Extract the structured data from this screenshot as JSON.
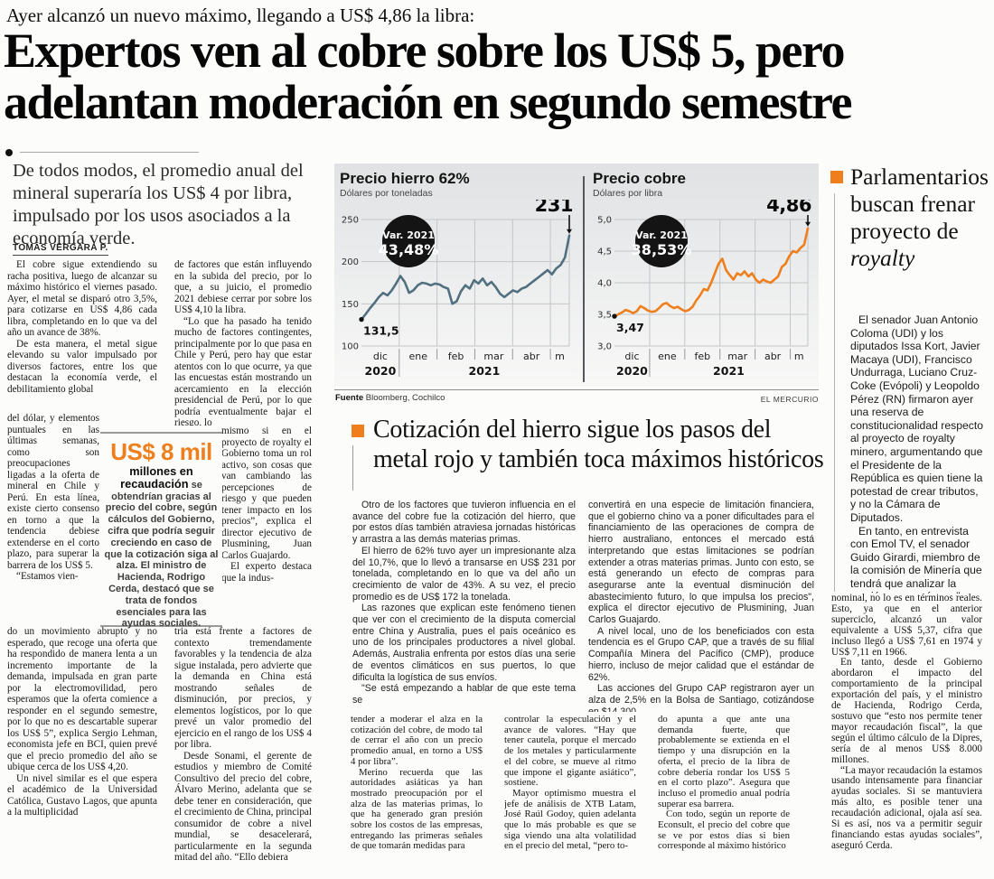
{
  "accent": "#ee7f1c",
  "kicker": "Ayer alcanzó un nuevo máximo, llegando a US$ 4,86 la libra:",
  "headline": "Expertos ven al cobre sobre los US$ 5, pero adelantan moderación en segundo semestre",
  "lead": "De todos modos, el promedio anual del mineral superaría los US$ 4 por libra, impulsado por los usos asociados a la economía verde.",
  "byline": "TOMÁS VERGARA P.",
  "main_article": {
    "col1_seg_a": [
      {
        "t": "El cobre sigue extendiendo su racha positiva, luego de alcanzar su máximo histórico el viernes pasado. Ayer, el metal se disparó otro 3,5%, para cotizarse en US$ 4,86 cada libra, completando en lo que va del año un avance de 38%."
      },
      {
        "t": "De esta manera, el metal sigue elevando su valor impulsado por diversos factores, entre los que destacan la economía verde, el debilitamiento global"
      }
    ],
    "col1_seg_b": [
      {
        "t": "del dólar, y elementos puntuales en las últimas semanas, como son preocupaciones ligadas a la oferta de mineral en Chile y Perú. En esta línea, existe cierto consenso en torno a que la tendencia debiese extenderse en el corto plazo, para superar la barrera de los US$ 5.",
        "cont": true
      },
      {
        "t": "“Estamos vien-"
      }
    ],
    "col1_seg_c": [
      {
        "t": "do un movimiento abrupto y no esperado, que recoge una oferta que ha respondido de manera lenta a un incremento importante de la demanda, impulsada en gran parte por la electromovilidad, pero esperamos que la oferta comience a responder en el segundo semestre, por lo que no es descartable superar los US$ 5”, explica Sergio Lehman, economista jefe en BCI, quien prevé que el precio promedio del año se ubique cerca de los US$ 4,20.",
        "cont": true
      },
      {
        "t": "Un nivel similar es el que espera el académico de la Universidad Católica, Gustavo Lagos, que apunta a la multiplicidad"
      }
    ],
    "col2_seg_a": [
      {
        "t": "de factores que están influyendo en la subida del precio, por lo que, a su juicio, el promedio 2021 debiese cerrar por sobre los US$ 4,10 la libra.",
        "cont": true
      },
      {
        "t": "“Lo que ha pasado ha tenido mucho de factores contingentes, principalmente por lo que pasa en Chile y Perú, pero hay que estar atentos con lo que ocurre, ya que las encuestas están mostrando un acercamiento en la elección presidencial de Perú, por lo que podría eventualmente bajar el riesgo, lo"
      }
    ],
    "col2_seg_b": [
      {
        "t": "mismo si en el proyecto de royalty el Gobierno toma un rol activo, son cosas que van cambiando las percepciones de riesgo y que pueden tener impacto en los precios”, explica el director ejecutivo de Plusmining, Juan Carlos Guajardo.",
        "cont": true
      },
      {
        "t": "El experto destaca que la indus-"
      }
    ],
    "col2_seg_c": [
      {
        "t": "tria está frente a factores de contexto tremendamente favorables y la tendencia de alza sigue instalada, pero advierte que la demanda en China está mostrando señales de disminución, por precios, y elementos logísticos, por lo que prevé un valor promedio del ejercicio en el rango de los US$ 4 por libra.",
        "cont": true
      },
      {
        "t": "Desde Sonami, el gerente de estudios y miembro de Comité Consultivo del precio del cobre, Álvaro Merino, adelanta que se debe tener en consideración, que el crecimiento de China, principal consumidor de cobre a nivel mundial, se desacelerará, particularmente en la segunda mitad del año. “Ello debiera"
      }
    ],
    "bottom_col_1": [
      {
        "t": "tender a moderar el alza en la cotización del cobre, de modo tal de cerrar el año con un precio promedio anual, en torno a US$ 4 por libra”.",
        "cont": true
      },
      {
        "t": "Merino recuerda que las autoridades asiáticas ya han mostrado preocupación por el alza de las materias primas, lo que ha generado gran presión sobre los costos de las empresas, entregando las primeras señales de que tomarán medidas para"
      }
    ],
    "bottom_col_2": [
      {
        "t": "controlar la especulación y el avance de valores. “Hay que tener cautela, porque el mercado de los metales y particularmente el del cobre, se mueve al ritmo que impone el gigante asiático”, sostiene.",
        "cont": true
      },
      {
        "t": "Mayor optimismo muestra el jefe de análisis de XTB Latam, José Raúl Godoy, quien adelanta que lo más probable es que se siga viendo una alta volatilidad en el precio del metal, “pero to-"
      }
    ],
    "bottom_col_3": [
      {
        "t": "do apunta a que ante una demanda fuerte, que probablemente se extienda en el tiempo y una disrupción en la oferta, el precio de la libra de cobre debería rondar los US$ 5 en el corto plazo”. Asegura que incluso el promedio anual podría superar esa barrera.",
        "cont": true
      },
      {
        "t": "Con todo, según un reporte de Econsult, el precio del cobre que se ve por estos días si bien corresponde al máximo histórico"
      }
    ],
    "right_continuation": [
      {
        "t": "nominal, no lo es en términos reales. Esto, ya que en el anterior superciclo, alcanzó un valor equivalente a US$ 5,37, cifra que incluso llegó a US$ 7,61 en 1974 y US$ 7,11 en 1966.",
        "cont": true
      },
      {
        "t": "En tanto, desde el Gobierno abordaron el impacto del comportamiento de la principal exportación del país, y el ministro de Hacienda, Rodrigo Cerda, sostuvo que “esto nos permite tener mayor recaudación fiscal”, la que según el último cálculo de la Dipres, sería de al menos US$ 8.000 millones."
      },
      {
        "t": "“La mayor recaudación la estamos usando intensamente para financiar ayudas sociales. Si se mantuviera más alto, es posible tener una recaudación adicional, ojala así sea. Si es así, nos va a permitir seguir financiando estas ayudas sociales”, aseguró Cerda."
      }
    ]
  },
  "pull_quote": {
    "big": "US$ 8 mil",
    "bold": "millones en recaudación",
    "rest": " se obtendrían gracias al precio del cobre, según cálculos del Gobierno, cifra que podría seguir creciendo en caso de que la cotización siga al alza. El ministro de Hacienda, Rodrigo Cerda, destacó que se trata de fondos esenciales para las ayudas sociales."
  },
  "charts_footer": {
    "source_label": "Fuente",
    "source": " Bloomberg, Cochilco",
    "credit": "EL MERCURIO"
  },
  "chart_data": [
    {
      "type": "line",
      "title": "Precio hierro 62%",
      "subtitle": "Dólares por toneladas",
      "badge": {
        "label": "Var. 2021",
        "value": "43,48%"
      },
      "start_label": "131,5",
      "end_label": "231",
      "ylim": [
        100,
        250
      ],
      "yticks": [
        100,
        150,
        200,
        250
      ],
      "ytick_labels": [
        "100",
        "150",
        "200",
        "250"
      ],
      "months": [
        "dic",
        "ene",
        "feb",
        "mar",
        "abr",
        "m"
      ],
      "month_weights": [
        1,
        1,
        1,
        1,
        1,
        0.5
      ],
      "year_labels": [
        {
          "text": "2020",
          "span": [
            0,
            1
          ]
        },
        {
          "text": "2021",
          "span": [
            1,
            5.5
          ]
        }
      ],
      "color": "#50707f",
      "values": [
        131.5,
        138,
        145,
        151,
        158,
        163,
        160,
        166,
        174,
        183,
        176,
        163,
        166,
        172,
        175,
        174,
        172,
        174,
        173,
        170,
        168,
        150,
        153,
        165,
        172,
        168,
        178,
        174,
        180,
        172,
        176,
        170,
        162,
        158,
        162,
        166,
        164,
        168,
        170,
        174,
        178,
        182,
        186,
        190,
        185,
        192,
        196,
        205,
        231
      ]
    },
    {
      "type": "line",
      "title": "Precio cobre",
      "subtitle": "Dólares por libra",
      "badge": {
        "label": "Var. 2021",
        "value": "38,53%"
      },
      "start_label": "3,47",
      "end_label": "4,86",
      "ylim": [
        3.0,
        5.0
      ],
      "yticks": [
        3.0,
        3.5,
        4.0,
        4.5,
        5.0
      ],
      "ytick_labels": [
        "3,0",
        "3,5",
        "4,0",
        "4,5",
        "5,0"
      ],
      "months": [
        "dic",
        "ene",
        "feb",
        "mar",
        "abr",
        "m"
      ],
      "month_weights": [
        1,
        1,
        1,
        1,
        1,
        0.5
      ],
      "year_labels": [
        {
          "text": "2020",
          "span": [
            0,
            1
          ]
        },
        {
          "text": "2021",
          "span": [
            1,
            5.5
          ]
        }
      ],
      "color": "#ee7f1c",
      "values": [
        3.47,
        3.5,
        3.53,
        3.57,
        3.55,
        3.52,
        3.55,
        3.63,
        3.6,
        3.56,
        3.54,
        3.55,
        3.6,
        3.66,
        3.68,
        3.63,
        3.6,
        3.62,
        3.58,
        3.55,
        3.57,
        3.62,
        3.72,
        3.8,
        3.9,
        3.88,
        4.0,
        4.15,
        4.3,
        4.38,
        4.2,
        4.12,
        4.05,
        4.15,
        4.12,
        4.18,
        4.1,
        4.15,
        4.05,
        4.0,
        4.05,
        4.02,
        4.0,
        4.05,
        4.1,
        4.25,
        4.3,
        4.42,
        4.5,
        4.48,
        4.55,
        4.6,
        4.86
      ]
    }
  ],
  "mid_article": {
    "headline": "Cotización del hierro sigue los pasos del metal rojo y también toca máximos históricos",
    "col1": [
      {
        "t": "Otro de los factores que tuvieron influencia en el avance del cobre fue la cotización del hierro, que por estos días también atraviesa jornadas históricas y arrastra a las demás materias primas."
      },
      {
        "t": "El hierro de 62% tuvo ayer un impresionante alza del 10,7%, que lo llevó a transarse en US$ 231 por tonelada, completando en lo que va del año un crecimiento de valor de 43%. A su vez, el precio promedio es de US$ 172 la tonelada."
      },
      {
        "t": "Las razones que explican este fenómeno tienen que ver con el crecimiento de la disputa comercial entre China y Australia, pues el país oceánico es uno de los principales productores a nivel global. Además, Australia enfrenta por estos días una serie de eventos climáticos en sus puertos, lo que dificulta la logística de sus envíos."
      },
      {
        "t": "\"Se está empezando a hablar de que este tema se"
      }
    ],
    "col2": [
      {
        "t": "convertirá en una especie de limitación financiera, que el gobierno chino va a poner dificultades para el financiamiento de las operaciones de compra de hierro australiano, entonces el mercado está interpretando que estas limitaciones se podrían extender a otras materias primas. Junto con esto, se está generando un efecto de compras para asegurarse ante la eventual disminución del abastecimiento futuro, lo que impulsa los precios\", explica el director ejecutivo de Plusmining, Juan Carlos Guajardo.",
        "cont": true
      },
      {
        "t": "A nivel local, uno de los beneficiados con esta tendencia es el Grupo CAP, que a través de su filial Compañía Minera del Pacífico (CMP), produce hierro, incluso de mejor calidad que el estándar de 62%."
      },
      {
        "t": "Las acciones del Grupo CAP registraron ayer un alza de 2,5% en la Bolsa de Santiago, cotizándose en $14.300."
      }
    ]
  },
  "sidebar": {
    "headline_lines": [
      "Parlamentarios",
      "buscan frenar",
      "proyecto de"
    ],
    "headline_italic": "royalty",
    "body": [
      {
        "t": "El senador Juan Antonio Coloma (UDI) y los diputados Issa Kort, Javier Macaya (UDI), Francisco Undurraga, Luciano Cruz-Coke (Evópoli) y Leopoldo Pérez (RN) firmaron ayer una reserva de constitucionalidad respecto al proyecto de royalty minero, argumentando que el Presidente de la República es quien tiene la potestad de crear tributos, y no la Cámara de Diputados."
      },
      {
        "t": "En tanto, en entrevista con Emol TV, el senador Guido Girardi, miembro de la comisión de Minería que tendrá que analizar la moción, aseguró que \"no digo que les subamos el royalty a una manera tal que se haga inviable y que no puedan competir, pero evidentemente pueden pagar mucho más de lo que están pagando\"."
      }
    ]
  }
}
